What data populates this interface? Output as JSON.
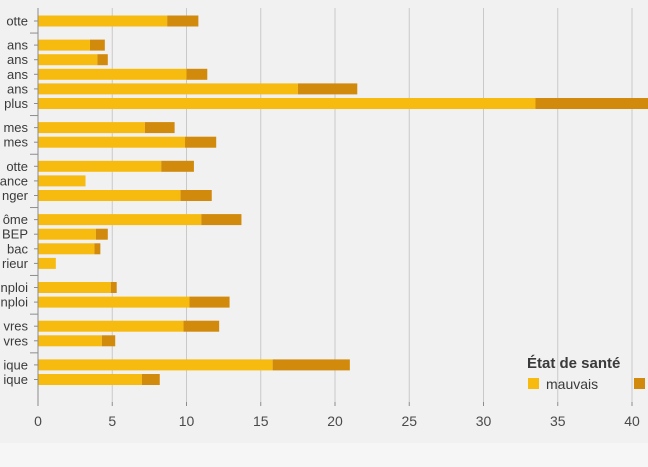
{
  "chart_data": {
    "type": "bar",
    "stacked": true,
    "orientation": "horizontal",
    "categories": [
      "otte",
      "ans",
      "ans",
      "ans",
      "ans",
      "plus",
      "mes",
      "mes",
      "otte",
      "ance",
      "nger",
      "ôme",
      "BEP",
      "bac",
      "rieur",
      "nploi",
      "nploi",
      "vres",
      "vres",
      "ique",
      "ique"
    ],
    "group_sizes": [
      1,
      5,
      2,
      3,
      4,
      2,
      2,
      2
    ],
    "series": [
      {
        "name": "mauvais",
        "color": "#f7bb10",
        "values": [
          8.7,
          3.5,
          4.0,
          10.0,
          17.5,
          33.5,
          7.2,
          9.9,
          8.3,
          3.2,
          9.6,
          11.0,
          3.9,
          3.8,
          1.2,
          4.9,
          10.2,
          9.8,
          4.3,
          15.8,
          7.0
        ]
      },
      {
        "name": "",
        "color": "#d28a0c",
        "values": [
          2.1,
          1.0,
          0.7,
          1.4,
          4.0,
          8.0,
          2.0,
          2.1,
          2.2,
          0.0,
          2.1,
          2.7,
          0.8,
          0.4,
          0.0,
          0.4,
          2.7,
          2.4,
          0.9,
          5.2,
          1.2
        ]
      }
    ],
    "x_ticks": [
      "0",
      "5",
      "10",
      "15",
      "20",
      "25",
      "30",
      "35",
      "40"
    ],
    "xlim": [
      0,
      41
    ],
    "grid": true,
    "legend": {
      "title": "État de santé",
      "placement": "bottom-right"
    }
  }
}
